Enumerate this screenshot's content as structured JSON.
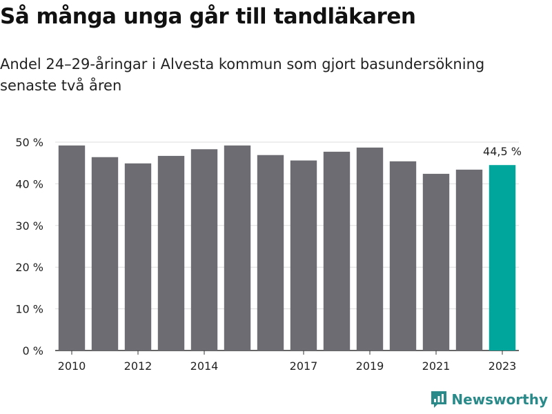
{
  "header": {
    "title": "Så många unga går till tandläkaren",
    "subtitle": "Andel 24–29-åringar i Alvesta kommun som gjort basundersökning senaste två åren"
  },
  "brand": {
    "name": "Newsworthy",
    "icon": "newsworthy-logo-icon",
    "color": "#2a8a8a"
  },
  "colors": {
    "bar": "#6d6c72",
    "highlight": "#00a69c",
    "axis": "#333333",
    "grid": "#dddddd"
  },
  "chart_data": {
    "type": "bar",
    "title": "Så många unga går till tandläkaren",
    "subtitle": "Andel 24–29-åringar i Alvesta kommun som gjort basundersökning senaste två åren",
    "categories": [
      "2010",
      "2011",
      "2012",
      "2013",
      "2014",
      "2015",
      "2016",
      "2017",
      "2018",
      "2019",
      "2020",
      "2021",
      "2022",
      "2023"
    ],
    "values": [
      49.2,
      46.4,
      44.9,
      46.7,
      48.3,
      49.2,
      46.9,
      45.6,
      47.7,
      48.7,
      45.4,
      42.4,
      43.4,
      44.5
    ],
    "highlight_category": "2023",
    "highlight_label": "44,5 %",
    "x_tick_labels": [
      "2010",
      "2012",
      "2014",
      "2017",
      "2019",
      "2021",
      "2023"
    ],
    "y_ticks": [
      0,
      10,
      20,
      30,
      40,
      50
    ],
    "y_tick_labels": [
      "0 %",
      "10 %",
      "20 %",
      "30 %",
      "40 %",
      "50 %"
    ],
    "ylim": [
      0,
      50
    ],
    "grid": true,
    "xlabel": "",
    "ylabel": ""
  }
}
